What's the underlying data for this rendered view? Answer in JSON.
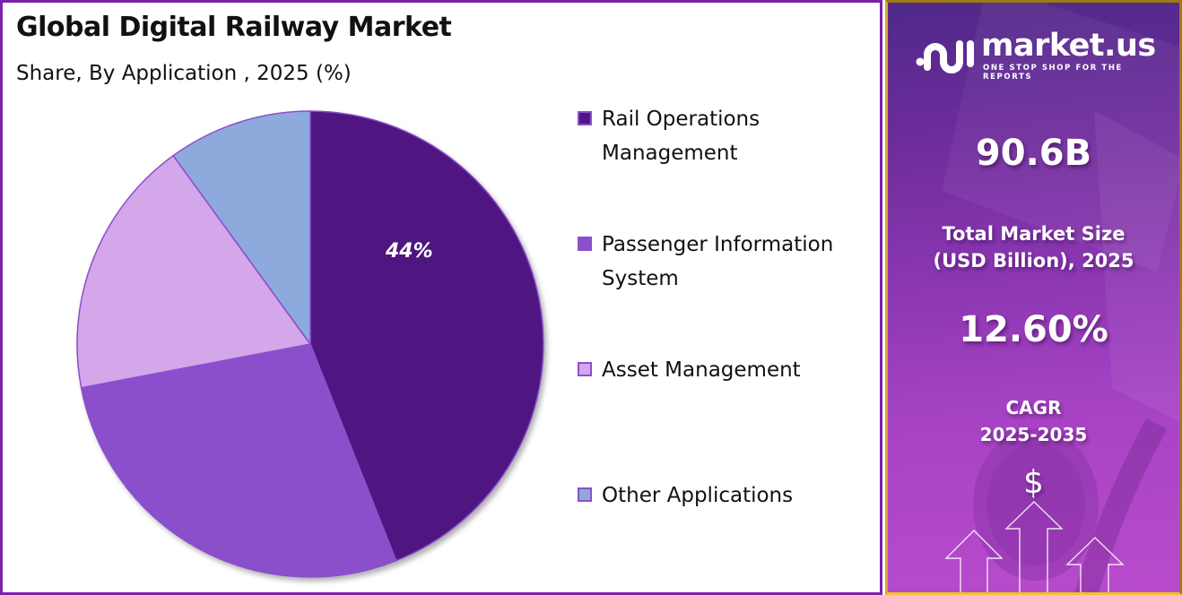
{
  "header": {
    "title": "Global Digital Railway Market",
    "subtitle": "Share, By Application , 2025 (%)"
  },
  "chart_data": {
    "type": "pie",
    "title": "Global Digital Railway Market",
    "subtitle": "Share, By Application , 2025 (%)",
    "categories": [
      "Rail Operations Management",
      "Passenger Information System",
      "Asset Management",
      "Other Applications"
    ],
    "values": [
      44,
      28,
      18,
      10
    ],
    "colors": [
      "#4f1681",
      "#8b4fcc",
      "#d4a6ea",
      "#8eaadc"
    ],
    "data_labels": [
      {
        "category": "Rail Operations Management",
        "text": "44%"
      }
    ],
    "start_angle": "12 o'clock, clockwise",
    "legend_position": "right"
  },
  "pie": {
    "label_main": "44%"
  },
  "legend": {
    "items": [
      {
        "label": "Rail Operations\nManagement",
        "color": "#4f1681"
      },
      {
        "label": "Passenger Information\nSystem",
        "color": "#8b4fcc"
      },
      {
        "label": "Asset Management",
        "color": "#d4a6ea"
      },
      {
        "label": "Other Applications",
        "color": "#8eaadc"
      }
    ]
  },
  "sidebar": {
    "brand_name": "market.us",
    "brand_tagline": "ONE STOP SHOP FOR THE REPORTS",
    "market_size_value": "90.6B",
    "market_size_caption": "Total Market Size\n(USD Billion), 2025",
    "cagr_value": "12.60%",
    "cagr_caption": "CAGR\n2025-2035",
    "dollar_symbol": "$"
  }
}
